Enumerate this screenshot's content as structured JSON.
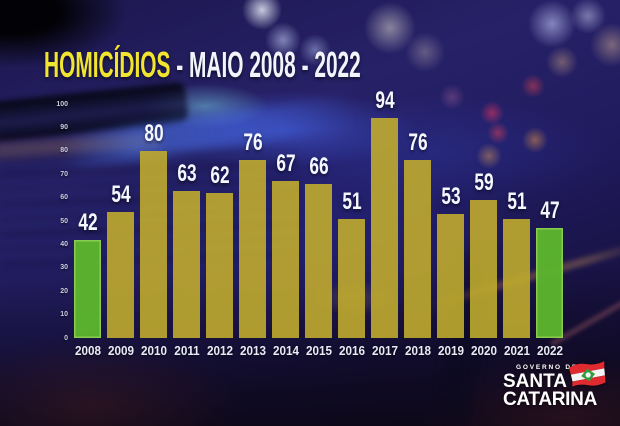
{
  "title": {
    "highlight": "HOMICÍDIOS",
    "rest": " - MAIO 2008 - 2022"
  },
  "chart_data": {
    "type": "bar",
    "title": "HOMICÍDIOS - MAIO 2008 - 2022",
    "categories": [
      "2008",
      "2009",
      "2010",
      "2011",
      "2012",
      "2013",
      "2014",
      "2015",
      "2016",
      "2017",
      "2018",
      "2019",
      "2020",
      "2021",
      "2022"
    ],
    "values": [
      42,
      54,
      80,
      63,
      62,
      76,
      67,
      66,
      51,
      94,
      76,
      53,
      59,
      51,
      47
    ],
    "xlabel": "",
    "ylabel": "",
    "ylim": [
      0,
      100
    ],
    "yticks": [
      0,
      10,
      20,
      30,
      40,
      50,
      60,
      70,
      80,
      90,
      100
    ],
    "grid": false,
    "legend": false,
    "value_labels_shown": true,
    "highlight_categories": [
      "2008",
      "2022"
    ]
  },
  "colors": {
    "title_highlight": "#f2e52f",
    "title_rest": "#f3f4fb",
    "bar_yellow": "#c0ab2e",
    "bar_green": "#5cb42e",
    "bar_green_border": "#8ed24f",
    "value_label": "#f5f7ff",
    "year_label": "#e8eaf6",
    "axis_label": "#c9cde2"
  },
  "logo": {
    "line1": "GOVERNO DE",
    "line2": "SANTA",
    "line3": "CATARINA",
    "flag": "santa-catarina-flag"
  }
}
